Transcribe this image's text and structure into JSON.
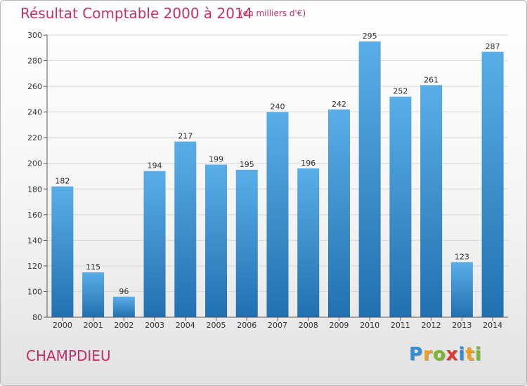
{
  "title": "Résultat Comptable 2000 à 2014",
  "subtitle": "(en milliers d'€)",
  "commune": "CHAMPDIEU",
  "logo": {
    "letters": [
      {
        "ch": "P",
        "color": "#2f8fd8"
      },
      {
        "ch": "r",
        "color": "#f0a020"
      },
      {
        "ch": "o",
        "color": "#7cb82f"
      },
      {
        "ch": "x",
        "color": "#e03a2e"
      },
      {
        "ch": "i",
        "color": "#2f8fd8"
      },
      {
        "ch": "t",
        "color": "#f0a020"
      },
      {
        "ch": "i",
        "color": "#7cb82f"
      }
    ]
  },
  "colors": {
    "bar_top": "#5aaee8",
    "bar_bottom": "#2270b0",
    "title": "#c0306a"
  },
  "chart_data": {
    "type": "bar",
    "categories": [
      "2000",
      "2001",
      "2002",
      "2003",
      "2004",
      "2005",
      "2006",
      "2007",
      "2008",
      "2009",
      "2010",
      "2011",
      "2012",
      "2013",
      "2014"
    ],
    "values": [
      182,
      115,
      96,
      194,
      217,
      199,
      195,
      240,
      196,
      242,
      295,
      252,
      261,
      123,
      287
    ],
    "ylim": [
      80,
      300
    ],
    "yticks": [
      80,
      100,
      120,
      140,
      160,
      180,
      200,
      220,
      240,
      260,
      280,
      300
    ],
    "grid": true
  }
}
